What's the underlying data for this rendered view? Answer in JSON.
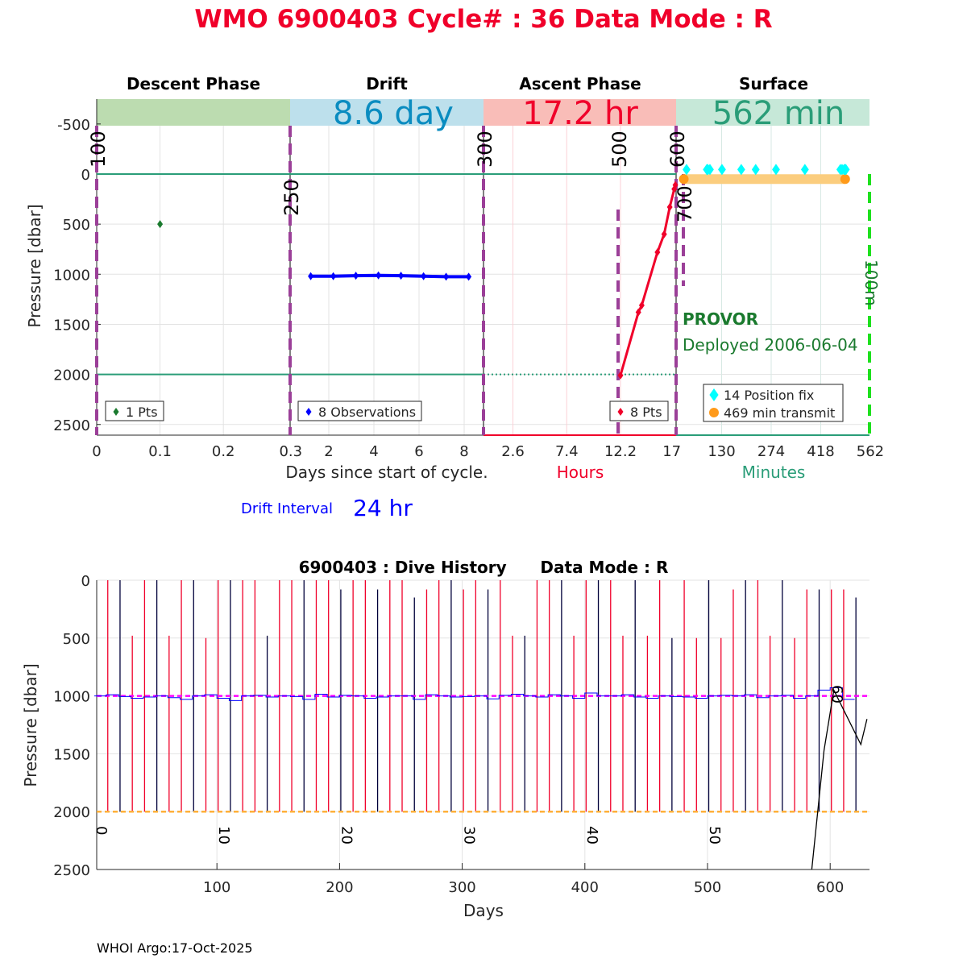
{
  "title": "WMO 6900403   Cycle# : 36   Data Mode : R",
  "phases": [
    {
      "name": "Descent Phase",
      "value": "",
      "band_color": "#bcdcb0",
      "value_color": "#1a7a2e"
    },
    {
      "name": "Drift",
      "value": "8.6 day",
      "band_color": "#bde0ec",
      "value_color": "#0a8cc0"
    },
    {
      "name": "Ascent Phase",
      "value": "17.2 hr",
      "band_color": "#f9bdb8",
      "value_color": "#f0002a"
    },
    {
      "name": "Surface",
      "value": "562 min",
      "band_color": "#c6e8d8",
      "value_color": "#2a9d78"
    }
  ],
  "y_label": "Pressure [dbar]",
  "x_label_days": "Days since start of cycle.",
  "x_label_hours": "Hours",
  "x_label_minutes": "Minutes",
  "drift_interval_label": "Drift Interval",
  "drift_interval_value": "24 hr",
  "float_type": "PROVOR",
  "deployed": "Deployed 2006-06-04",
  "footer": "WHOI Argo:17-Oct-2025",
  "chart_data": [
    {
      "type": "scatter",
      "title": "WMO 6900403 Cycle 36",
      "ylabel": "Pressure [dbar]",
      "ylim": [
        -500,
        2600
      ],
      "yticks": [
        "-500",
        "0",
        "500",
        "1000",
        "1500",
        "2000",
        "2500"
      ],
      "grid": true,
      "vertical_markers": [
        "100",
        "250",
        "300",
        "500",
        "600",
        "700",
        "100m"
      ],
      "descent": {
        "xticks": [
          "0",
          "0.1",
          "0.2",
          "0.3"
        ],
        "x": [
          0.1
        ],
        "y": [
          500
        ],
        "legend": "1 Pts",
        "color": "#1a7a2e"
      },
      "drift": {
        "xticks": [
          "2",
          "4",
          "6",
          "8"
        ],
        "x": [
          1.2,
          2.2,
          3.2,
          4.2,
          5.2,
          6.2,
          7.2,
          8.2
        ],
        "y": [
          1020,
          1020,
          1015,
          1012,
          1015,
          1020,
          1025,
          1025
        ],
        "legend": "8 Observations",
        "color": "#0000ff"
      },
      "ascent": {
        "xticks": [
          "2.6",
          "7.4",
          "12.2",
          "17"
        ],
        "x": [
          12.2,
          13.8,
          14.1,
          15.5,
          16.1,
          16.6,
          17.0,
          17.1
        ],
        "y": [
          2010,
          1380,
          1310,
          780,
          600,
          330,
          150,
          110
        ],
        "legend": "8 Pts",
        "color": "#f0002a"
      },
      "surface": {
        "xticks": [
          "130",
          "274",
          "418",
          "562"
        ],
        "position_fix_minutes": [
          28,
          87,
          90,
          96,
          131,
          187,
          229,
          288,
          372,
          475,
          480,
          486,
          489,
          491
        ],
        "transmit_start": 20,
        "transmit_end": 489,
        "transmit_pressure": 50,
        "legend_fix": "14 Position fix",
        "legend_transmit": "469 min transmit"
      }
    },
    {
      "type": "line",
      "title": "6900403 : Dive History      Data Mode : R",
      "xlabel": "Days",
      "ylabel": "Pressure [dbar]",
      "xlim": [
        0,
        630
      ],
      "ylim": [
        0,
        2500
      ],
      "xticks": [
        "100",
        "200",
        "300",
        "400",
        "500",
        "600"
      ],
      "yticks": [
        "0",
        "500",
        "1000",
        "1500",
        "2000",
        "2500"
      ],
      "cycle_labels": [
        {
          "day": 0,
          "label": "0"
        },
        {
          "day": 100,
          "label": "10"
        },
        {
          "day": 200,
          "label": "20"
        },
        {
          "day": 300,
          "label": "30"
        },
        {
          "day": 400,
          "label": "40"
        },
        {
          "day": 500,
          "label": "50"
        },
        {
          "day": 600,
          "label": "60"
        }
      ],
      "park_pressure": 1000,
      "profile_pressure": 2000,
      "profiles_top": [
        0,
        0,
        480,
        0,
        0,
        480,
        0,
        0,
        500,
        0,
        0,
        0,
        0,
        480,
        0,
        0,
        0,
        0,
        0,
        80,
        0,
        0,
        80,
        0,
        0,
        150,
        80,
        0,
        0,
        80,
        0,
        80,
        0,
        480,
        480,
        0,
        0,
        0,
        480,
        0,
        0,
        0,
        480,
        0,
        480,
        0,
        500,
        0,
        500,
        0,
        500,
        80,
        0,
        0,
        480,
        0,
        500,
        80,
        80,
        80,
        80,
        150
      ],
      "drift_series": [
        1000,
        990,
        1005,
        1020,
        1010,
        1000,
        1015,
        1030,
        1000,
        990,
        1020,
        1040,
        1000,
        995,
        1010,
        1000,
        1005,
        1030,
        985,
        1010,
        995,
        1000,
        1020,
        1010,
        1000,
        1000,
        1030,
        990,
        1000,
        1010,
        1005,
        1000,
        1025,
        995,
        985,
        1000,
        1010,
        990,
        1000,
        1020,
        975,
        1000,
        1000,
        990,
        1010,
        1020,
        1000,
        1005,
        1010,
        1020,
        1000,
        995,
        1000,
        990,
        1015,
        1000,
        995,
        1020,
        1000,
        950,
        930,
        1030
      ],
      "trajectory": {
        "x": [
          585,
          595,
          603,
          625,
          630
        ],
        "y": [
          2500,
          1470,
          950,
          1420,
          1200
        ]
      }
    }
  ]
}
